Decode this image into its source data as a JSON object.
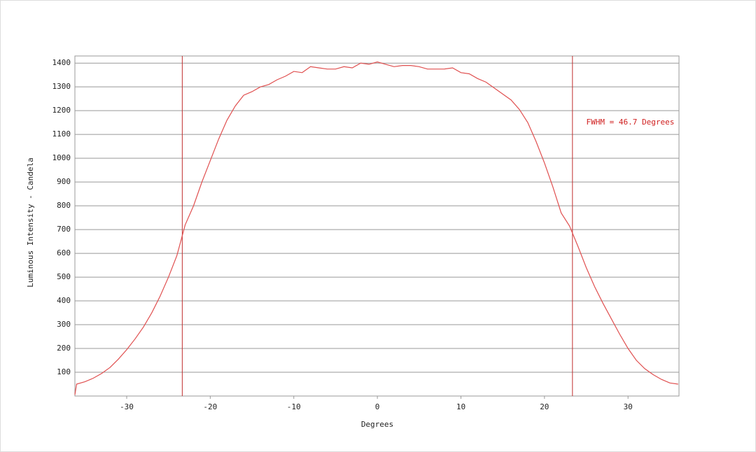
{
  "chart_data": {
    "type": "line",
    "xlabel": "Degrees",
    "ylabel": "Luminous Intensity - Candela",
    "annotation": {
      "text": "FWHM = 46.7 Degrees",
      "x": 25,
      "y": 1150
    },
    "fwhm_lines": [
      -23.35,
      23.35
    ],
    "x": [
      -36.2,
      -36,
      -35,
      -34,
      -33,
      -32,
      -31,
      -30,
      -29,
      -28,
      -27,
      -26,
      -25,
      -24,
      -23,
      -22,
      -21,
      -20,
      -19,
      -18,
      -17,
      -16,
      -15,
      -14,
      -13,
      -12,
      -11,
      -10,
      -9,
      -8,
      -7,
      -6,
      -5,
      -4,
      -3,
      -2,
      -1,
      0,
      1,
      2,
      3,
      4,
      5,
      6,
      7,
      8,
      9,
      10,
      11,
      12,
      13,
      14,
      15,
      16,
      17,
      18,
      19,
      20,
      21,
      22,
      23,
      24,
      25,
      26,
      27,
      28,
      29,
      30,
      31,
      32,
      33,
      34,
      35,
      36
    ],
    "series": [
      {
        "name": "Intensity",
        "color": "#e05050",
        "values": [
          5,
          50,
          60,
          75,
          95,
          120,
          155,
          195,
          240,
          290,
          350,
          420,
          500,
          590,
          720,
          800,
          900,
          990,
          1080,
          1160,
          1220,
          1265,
          1280,
          1300,
          1310,
          1330,
          1345,
          1365,
          1360,
          1385,
          1380,
          1375,
          1375,
          1385,
          1380,
          1400,
          1395,
          1405,
          1395,
          1385,
          1390,
          1390,
          1385,
          1375,
          1375,
          1375,
          1380,
          1360,
          1355,
          1335,
          1320,
          1295,
          1270,
          1245,
          1205,
          1150,
          1070,
          980,
          880,
          770,
          715,
          630,
          540,
          460,
          390,
          325,
          260,
          200,
          150,
          115,
          90,
          70,
          55,
          50
        ]
      }
    ],
    "xlim": [
      -36.2,
      36.1
    ],
    "ylim": [
      0,
      1430
    ],
    "xticks": [
      -30,
      -20,
      -10,
      0,
      10,
      20,
      30
    ],
    "yticks": [
      100,
      200,
      300,
      400,
      500,
      600,
      700,
      800,
      900,
      1000,
      1100,
      1200,
      1300,
      1400
    ],
    "grid": true
  }
}
